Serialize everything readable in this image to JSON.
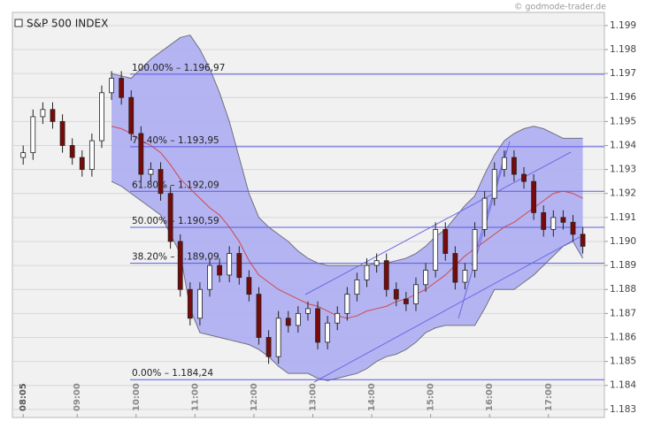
{
  "chart_data": {
    "type": "candlestick",
    "title": "S&P 500 INDEX",
    "watermark": "© godmode-trader.de",
    "x": [
      "08:05",
      "08:15",
      "08:25",
      "08:35",
      "08:45",
      "08:55",
      "09:05",
      "09:15",
      "09:25",
      "09:35",
      "09:45",
      "09:55",
      "10:05",
      "10:15",
      "10:25",
      "10:35",
      "10:45",
      "10:55",
      "11:05",
      "11:15",
      "11:25",
      "11:35",
      "11:45",
      "11:55",
      "12:05",
      "12:15",
      "12:25",
      "12:35",
      "12:45",
      "12:55",
      "13:05",
      "13:15",
      "13:25",
      "13:35",
      "13:45",
      "13:55",
      "14:05",
      "14:15",
      "14:25",
      "14:35",
      "14:45",
      "14:55",
      "15:05",
      "15:15",
      "15:25",
      "15:35",
      "15:45",
      "15:55",
      "16:05",
      "16:15",
      "16:25",
      "16:35",
      "16:45",
      "16:55",
      "17:05",
      "17:15",
      "17:25",
      "17:35"
    ],
    "open": [
      1.1935,
      1.1937,
      1.1952,
      1.1955,
      1.195,
      1.194,
      1.1935,
      1.193,
      1.1942,
      1.1962,
      1.1968,
      1.196,
      1.1945,
      1.1928,
      1.193,
      1.192,
      1.19,
      1.188,
      1.1868,
      1.188,
      1.189,
      1.1886,
      1.1895,
      1.1885,
      1.1878,
      1.186,
      1.1852,
      1.1868,
      1.1865,
      1.187,
      1.1872,
      1.1858,
      1.1866,
      1.187,
      1.1878,
      1.1884,
      1.189,
      1.1892,
      1.188,
      1.1876,
      1.1874,
      1.1882,
      1.1888,
      1.1905,
      1.1895,
      1.1883,
      1.1888,
      1.1905,
      1.1918,
      1.193,
      1.1935,
      1.1928,
      1.1925,
      1.1912,
      1.1905,
      1.191,
      1.1908,
      1.1903
    ],
    "high": [
      1.194,
      1.1955,
      1.1958,
      1.1958,
      1.1953,
      1.1943,
      1.1938,
      1.1945,
      1.1965,
      1.1971,
      1.1971,
      1.1963,
      1.1948,
      1.1933,
      1.1933,
      1.1923,
      1.1903,
      1.1883,
      1.1883,
      1.1893,
      1.1893,
      1.1898,
      1.1898,
      1.1888,
      1.1881,
      1.1863,
      1.1871,
      1.1871,
      1.1873,
      1.1875,
      1.1875,
      1.1869,
      1.1873,
      1.1881,
      1.1887,
      1.1893,
      1.1895,
      1.1895,
      1.1883,
      1.1879,
      1.1885,
      1.1891,
      1.1908,
      1.1908,
      1.1898,
      1.1891,
      1.1908,
      1.1921,
      1.1933,
      1.1938,
      1.1938,
      1.1931,
      1.1928,
      1.1915,
      1.1913,
      1.1913,
      1.1911,
      1.1906
    ],
    "low": [
      1.1932,
      1.1934,
      1.1949,
      1.1947,
      1.1937,
      1.1932,
      1.1927,
      1.1927,
      1.1939,
      1.1959,
      1.1957,
      1.1942,
      1.1925,
      1.1925,
      1.1917,
      1.1897,
      1.1877,
      1.1865,
      1.1865,
      1.1877,
      1.1883,
      1.1883,
      1.1882,
      1.1875,
      1.1857,
      1.1849,
      1.1849,
      1.1862,
      1.1862,
      1.1867,
      1.1855,
      1.1855,
      1.1863,
      1.1867,
      1.1875,
      1.1881,
      1.1887,
      1.1877,
      1.1873,
      1.1871,
      1.1871,
      1.1879,
      1.1885,
      1.1892,
      1.188,
      1.188,
      1.1885,
      1.1902,
      1.1915,
      1.1927,
      1.1925,
      1.1922,
      1.1909,
      1.1902,
      1.1902,
      1.1905,
      1.19,
      1.1895
    ],
    "close": [
      1.1937,
      1.1952,
      1.1955,
      1.195,
      1.194,
      1.1935,
      1.193,
      1.1942,
      1.1962,
      1.1968,
      1.196,
      1.1945,
      1.1928,
      1.193,
      1.192,
      1.19,
      1.188,
      1.1868,
      1.188,
      1.189,
      1.1886,
      1.1895,
      1.1885,
      1.1878,
      1.186,
      1.1852,
      1.1868,
      1.1865,
      1.187,
      1.1872,
      1.1858,
      1.1866,
      1.187,
      1.1878,
      1.1884,
      1.189,
      1.1892,
      1.188,
      1.1876,
      1.1874,
      1.1882,
      1.1888,
      1.1905,
      1.1895,
      1.1883,
      1.1888,
      1.1905,
      1.1918,
      1.193,
      1.1935,
      1.1928,
      1.1925,
      1.1912,
      1.1905,
      1.191,
      1.1908,
      1.1903,
      1.1898
    ],
    "up_color": "#ffffff",
    "down_color": "#7a0a0a",
    "bands": {
      "fill": "#a9a9f2",
      "edge_color": "#707080",
      "middle_color": "#d04848",
      "upper": [
        null,
        null,
        null,
        null,
        null,
        null,
        null,
        null,
        null,
        1.197,
        1.1969,
        1.1968,
        1.1972,
        1.1976,
        1.1979,
        1.1982,
        1.1985,
        1.1986,
        1.198,
        1.1972,
        1.1962,
        1.195,
        1.1935,
        1.192,
        1.191,
        1.1906,
        1.1903,
        1.19,
        1.1896,
        1.1893,
        1.1891,
        1.189,
        1.189,
        1.189,
        1.189,
        1.189,
        1.1891,
        1.1891,
        1.1892,
        1.1893,
        1.1895,
        1.1898,
        1.1902,
        1.1905,
        1.191,
        1.1915,
        1.1919,
        1.1928,
        1.1936,
        1.1942,
        1.1945,
        1.1947,
        1.1948,
        1.1947,
        1.1945,
        1.1943,
        1.1943,
        1.1943
      ],
      "middle": [
        null,
        null,
        null,
        null,
        null,
        null,
        null,
        null,
        null,
        1.1948,
        1.1947,
        1.1945,
        1.1942,
        1.194,
        1.1937,
        1.1932,
        1.1926,
        1.1922,
        1.1918,
        1.1914,
        1.1911,
        1.1906,
        1.19,
        1.1892,
        1.1886,
        1.1883,
        1.188,
        1.1878,
        1.1876,
        1.1874,
        1.1873,
        1.1871,
        1.1869,
        1.1868,
        1.1869,
        1.1871,
        1.1872,
        1.1873,
        1.1875,
        1.1876,
        1.1878,
        1.188,
        1.1883,
        1.1886,
        1.189,
        1.1894,
        1.1897,
        1.19,
        1.1903,
        1.1906,
        1.1908,
        1.1911,
        1.1914,
        1.1917,
        1.192,
        1.1921,
        1.192,
        1.1918
      ],
      "lower": [
        null,
        null,
        null,
        null,
        null,
        null,
        null,
        null,
        null,
        1.1925,
        1.1923,
        1.192,
        1.1917,
        1.1914,
        1.1911,
        1.1903,
        1.1895,
        1.1872,
        1.1862,
        1.1861,
        1.186,
        1.1859,
        1.1858,
        1.1857,
        1.1855,
        1.1852,
        1.1848,
        1.1845,
        1.1845,
        1.1845,
        1.1843,
        1.1842,
        1.1843,
        1.1844,
        1.1845,
        1.1847,
        1.185,
        1.1852,
        1.1853,
        1.1855,
        1.1858,
        1.1862,
        1.1864,
        1.1865,
        1.1865,
        1.1865,
        1.1865,
        1.1872,
        1.188,
        1.188,
        1.188,
        1.1883,
        1.1886,
        1.189,
        1.1894,
        1.1898,
        1.19,
        1.1893
      ]
    },
    "fib_color": "#5a5ae0",
    "fib_levels": [
      {
        "value": 1.19697,
        "label": "100.00% – 1.196,97"
      },
      {
        "value": 1.19395,
        "label": "76.40% – 1.193,95"
      },
      {
        "value": 1.19209,
        "label": "61.80% – 1.192,09"
      },
      {
        "value": 1.19059,
        "label": "50.00% – 1.190,59"
      },
      {
        "value": 1.18909,
        "label": "38.20% – 1.189,09"
      },
      {
        "value": 1.18424,
        "label": "0.00% – 1.184,24"
      }
    ],
    "xlim": [
      "07:54",
      "17:57"
    ],
    "xticks": [
      "08:05",
      "09:00",
      "10:00",
      "11:00",
      "12:00",
      "13:00",
      "14:00",
      "15:00",
      "16:00",
      "17:00"
    ],
    "ylim": [
      1.1827,
      1.1994
    ],
    "yticks": [
      1.183,
      1.184,
      1.185,
      1.186,
      1.187,
      1.188,
      1.189,
      {
        "value": 1.19,
        "label": "1.190"
      },
      1.191,
      1.192,
      1.193,
      1.194,
      1.195,
      1.196,
      1.197,
      1.198,
      1.199
    ],
    "grid": true
  }
}
